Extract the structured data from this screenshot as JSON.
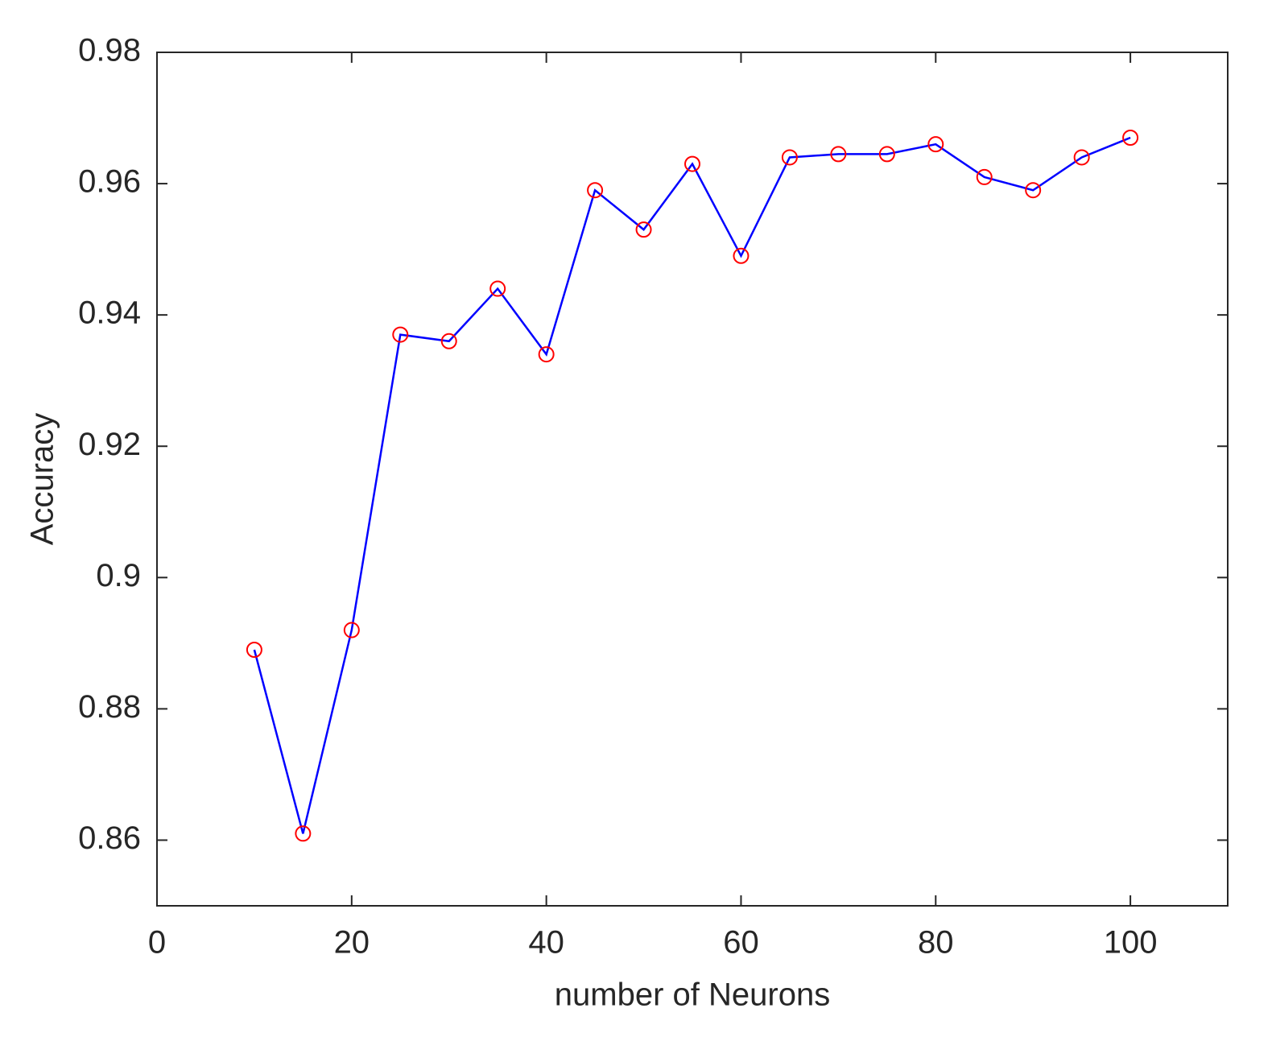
{
  "chart_data": {
    "type": "line",
    "x_label": "number of Neurons",
    "y_label": "Accuracy",
    "x": [
      10,
      15,
      20,
      25,
      30,
      35,
      40,
      45,
      50,
      55,
      60,
      65,
      70,
      75,
      80,
      85,
      90,
      95,
      100
    ],
    "series": [
      {
        "color": "#0000ff",
        "marker_color": "#ff0000",
        "values": [
          0.889,
          0.861,
          0.892,
          0.937,
          0.936,
          0.944,
          0.934,
          0.959,
          0.953,
          0.963,
          0.949,
          0.964,
          0.9645,
          0.9645,
          0.966,
          0.961,
          0.959,
          0.964,
          0.967
        ]
      }
    ],
    "xlim": [
      0,
      110
    ],
    "xticks": [
      0,
      20,
      40,
      60,
      80,
      100
    ],
    "ylim": [
      0.85,
      0.98
    ],
    "yticks": [
      0.86,
      0.88,
      0.9,
      0.92,
      0.94,
      0.96,
      0.98
    ],
    "grid": false
  }
}
